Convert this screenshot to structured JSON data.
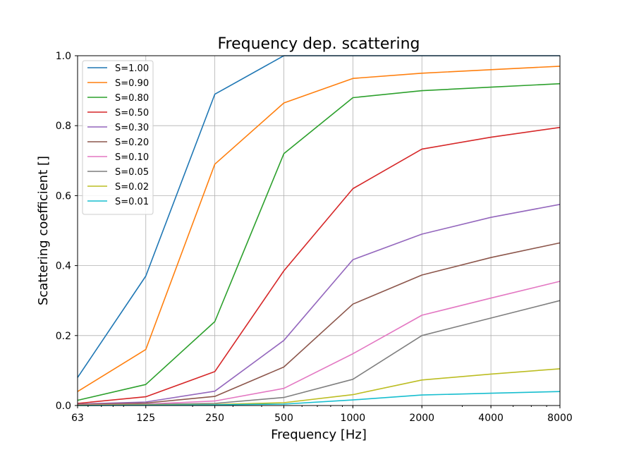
{
  "chart_data": {
    "type": "line",
    "title": "Frequency dep. scattering",
    "xlabel": "Frequency [Hz]",
    "ylabel": "Scattering coefficient []",
    "xscale": "log",
    "xlim": [
      63,
      8000
    ],
    "ylim": [
      0,
      1
    ],
    "grid": true,
    "legend_position": "top-left",
    "x": [
      63,
      125,
      250,
      500,
      1000,
      2000,
      4000,
      8000
    ],
    "xtick_labels": [
      "63",
      "125",
      "250",
      "500",
      "1000",
      "2000",
      "4000",
      "8000"
    ],
    "yticks": [
      0.0,
      0.2,
      0.4,
      0.6,
      0.8,
      1.0
    ],
    "ytick_labels": [
      "0.0",
      "0.2",
      "0.4",
      "0.6",
      "0.8",
      "1.0"
    ],
    "series": [
      {
        "name": "S=1.00",
        "color": "#1f77b4",
        "values": [
          0.08,
          0.37,
          0.89,
          1.0,
          1.0,
          1.0,
          1.0,
          1.0
        ]
      },
      {
        "name": "S=0.90",
        "color": "#ff7f0e",
        "values": [
          0.04,
          0.16,
          0.69,
          0.865,
          0.935,
          0.95,
          0.96,
          0.97
        ]
      },
      {
        "name": "S=0.80",
        "color": "#2ca02c",
        "values": [
          0.015,
          0.06,
          0.24,
          0.72,
          0.88,
          0.9,
          0.91,
          0.92
        ]
      },
      {
        "name": "S=0.50",
        "color": "#d62728",
        "values": [
          0.006,
          0.025,
          0.097,
          0.385,
          0.62,
          0.733,
          0.767,
          0.795
        ]
      },
      {
        "name": "S=0.30",
        "color": "#9467bd",
        "values": [
          0.004,
          0.01,
          0.041,
          0.186,
          0.417,
          0.49,
          0.538,
          0.575
        ]
      },
      {
        "name": "S=0.20",
        "color": "#8c564b",
        "values": [
          0.003,
          0.007,
          0.026,
          0.11,
          0.29,
          0.373,
          0.423,
          0.465
        ]
      },
      {
        "name": "S=0.10",
        "color": "#e377c2",
        "values": [
          0.002,
          0.004,
          0.013,
          0.049,
          0.148,
          0.258,
          0.307,
          0.355
        ]
      },
      {
        "name": "S=0.05",
        "color": "#7f7f7f",
        "values": [
          0.001,
          0.003,
          0.006,
          0.023,
          0.075,
          0.2,
          0.25,
          0.3
        ]
      },
      {
        "name": "S=0.02",
        "color": "#bcbd22",
        "values": [
          0.001,
          0.002,
          0.003,
          0.008,
          0.031,
          0.073,
          0.09,
          0.105
        ]
      },
      {
        "name": "S=0.01",
        "color": "#17becf",
        "values": [
          0.0,
          0.001,
          0.002,
          0.004,
          0.016,
          0.03,
          0.035,
          0.04
        ]
      }
    ]
  }
}
